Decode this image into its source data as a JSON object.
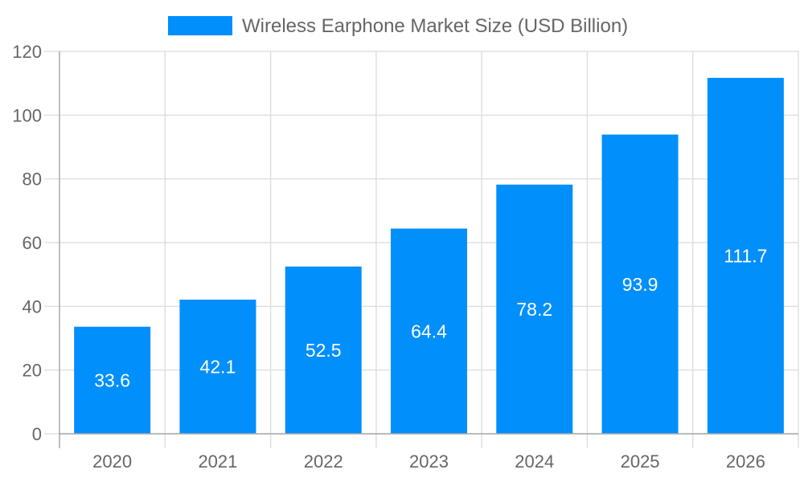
{
  "chart_data": {
    "type": "bar",
    "legend": {
      "label": "Wireless Earphone Market Size (USD Billion)",
      "placement": "top"
    },
    "categories": [
      "2020",
      "2021",
      "2022",
      "2023",
      "2024",
      "2025",
      "2026"
    ],
    "series": [
      {
        "name": "Wireless Earphone Market Size (USD Billion)",
        "values": [
          33.6,
          42.1,
          52.5,
          64.4,
          78.2,
          93.9,
          111.7
        ],
        "color": "#008ffb"
      }
    ],
    "data_labels": [
      "33.6",
      "42.1",
      "52.5",
      "64.4",
      "78.2",
      "93.9",
      "111.7"
    ],
    "ylim": [
      0,
      120
    ],
    "yticks": [
      0,
      20,
      40,
      60,
      80,
      100,
      120
    ],
    "grid": true,
    "xlabel": "",
    "ylabel": ""
  }
}
